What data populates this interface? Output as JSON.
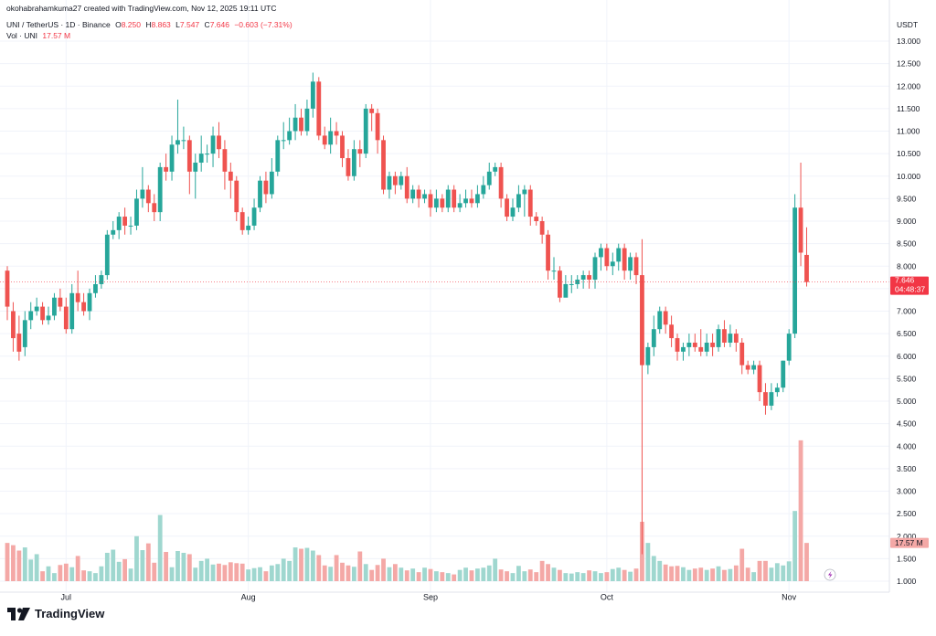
{
  "header": {
    "credit": "okohabrahamkuma27 created with TradingView.com, Nov 12, 2025 19:11 UTC",
    "symbol": "UNI / TetherUS · 1D · Binance",
    "o_label": "O",
    "o_value": "8.250",
    "h_label": "H",
    "h_value": "8.863",
    "l_label": "L",
    "l_value": "7.547",
    "c_label": "C",
    "c_value": "7.646",
    "change": "−0.603 (−7.31%)",
    "vol_label": "Vol · UNI",
    "vol_value": "17.57 M"
  },
  "price_axis": {
    "currency": "USDT",
    "last_price": "7.646",
    "countdown": "04:48:37"
  },
  "volume_axis": {
    "last_volume": "17.57 M"
  },
  "branding": {
    "name": "TradingView"
  },
  "colors": {
    "up": "#26a69a",
    "down": "#ef5350",
    "up_vol": "#9fd7cf",
    "down_vol": "#f4a8a6",
    "last_price_label": "#f23645",
    "grid": "#f0f3fa"
  },
  "chart_data": {
    "type": "candlestick",
    "title": "UNI / TetherUS · 1D · Binance",
    "y_ticks": [
      "13.000",
      "12.500",
      "12.000",
      "11.500",
      "11.000",
      "10.500",
      "10.000",
      "9.500",
      "9.000",
      "8.500",
      "8.000",
      "7.500",
      "7.000",
      "6.500",
      "6.000",
      "5.500",
      "5.000",
      "4.500",
      "4.000",
      "3.500",
      "3.000",
      "2.500",
      "2.000",
      "1.500",
      "1.000"
    ],
    "x_ticks": [
      {
        "label": "Jul",
        "index": 10
      },
      {
        "label": "Aug",
        "index": 41
      },
      {
        "label": "Sep",
        "index": 72
      },
      {
        "label": "Oct",
        "index": 102
      },
      {
        "label": "Nov",
        "index": 133
      }
    ],
    "price_range": [
      4.5,
      13.0
    ],
    "candles": [
      [
        7.9,
        7.1,
        8.0,
        6.8
      ],
      [
        7.0,
        6.4,
        7.2,
        6.1
      ],
      [
        6.5,
        6.1,
        6.9,
        5.9
      ],
      [
        6.2,
        6.8,
        7.0,
        6.0
      ],
      [
        6.8,
        7.0,
        7.2,
        6.6
      ],
      [
        7.0,
        7.1,
        7.3,
        6.9
      ],
      [
        7.1,
        6.8,
        7.2,
        6.7
      ],
      [
        6.8,
        6.9,
        7.1,
        6.7
      ],
      [
        6.9,
        7.3,
        7.4,
        6.8
      ],
      [
        7.3,
        7.1,
        7.5,
        7.0
      ],
      [
        7.1,
        6.6,
        7.3,
        6.5
      ],
      [
        6.6,
        7.4,
        7.6,
        6.5
      ],
      [
        7.4,
        7.2,
        7.9,
        7.0
      ],
      [
        7.2,
        7.0,
        7.4,
        6.9
      ],
      [
        7.0,
        7.4,
        7.5,
        6.8
      ],
      [
        7.4,
        7.6,
        7.8,
        7.3
      ],
      [
        7.6,
        7.8,
        7.9,
        7.5
      ],
      [
        7.8,
        8.7,
        8.8,
        7.7
      ],
      [
        8.7,
        8.8,
        9.0,
        8.6
      ],
      [
        8.8,
        9.1,
        9.2,
        8.6
      ],
      [
        9.1,
        8.9,
        9.3,
        8.7
      ],
      [
        8.9,
        8.9,
        9.1,
        8.7
      ],
      [
        8.9,
        9.5,
        9.7,
        8.8
      ],
      [
        9.5,
        9.7,
        10.2,
        9.3
      ],
      [
        9.7,
        9.4,
        9.8,
        9.2
      ],
      [
        9.4,
        9.2,
        9.6,
        9.0
      ],
      [
        9.2,
        10.2,
        10.3,
        9.0
      ],
      [
        10.2,
        10.1,
        10.5,
        9.9
      ],
      [
        10.1,
        10.7,
        10.9,
        9.9
      ],
      [
        10.7,
        10.8,
        11.7,
        10.5
      ],
      [
        10.8,
        10.8,
        11.1,
        10.6
      ],
      [
        10.8,
        10.1,
        10.9,
        9.6
      ],
      [
        10.1,
        10.3,
        10.5,
        9.5
      ],
      [
        10.3,
        10.5,
        10.9,
        10.1
      ],
      [
        10.5,
        10.5,
        10.7,
        10.3
      ],
      [
        10.5,
        10.9,
        11.1,
        10.2
      ],
      [
        10.9,
        10.6,
        11.2,
        10.4
      ],
      [
        10.6,
        10.1,
        10.8,
        9.7
      ],
      [
        10.1,
        9.9,
        10.3,
        9.5
      ],
      [
        9.9,
        9.2,
        10.0,
        9.0
      ],
      [
        9.2,
        8.8,
        9.3,
        8.7
      ],
      [
        8.8,
        8.9,
        9.1,
        8.7
      ],
      [
        8.9,
        9.3,
        9.5,
        8.8
      ],
      [
        9.3,
        9.9,
        10.0,
        9.2
      ],
      [
        9.9,
        9.6,
        10.1,
        9.4
      ],
      [
        9.6,
        10.1,
        10.4,
        9.5
      ],
      [
        10.1,
        10.8,
        10.9,
        10.0
      ],
      [
        10.8,
        10.8,
        11.2,
        10.6
      ],
      [
        10.8,
        11.0,
        11.3,
        10.7
      ],
      [
        11.0,
        11.3,
        11.6,
        10.8
      ],
      [
        11.3,
        11.0,
        11.5,
        10.9
      ],
      [
        11.0,
        11.5,
        11.7,
        10.9
      ],
      [
        11.5,
        12.1,
        12.3,
        11.3
      ],
      [
        12.1,
        10.9,
        12.2,
        10.8
      ],
      [
        10.9,
        10.7,
        11.1,
        10.6
      ],
      [
        10.7,
        11.0,
        11.3,
        10.5
      ],
      [
        11.0,
        10.9,
        11.2,
        10.7
      ],
      [
        10.9,
        10.4,
        11.0,
        10.2
      ],
      [
        10.4,
        10.0,
        10.6,
        9.9
      ],
      [
        10.0,
        10.6,
        10.8,
        9.9
      ],
      [
        10.6,
        10.5,
        10.8,
        10.2
      ],
      [
        10.5,
        11.5,
        11.6,
        10.4
      ],
      [
        11.5,
        11.4,
        11.6,
        11.0
      ],
      [
        11.4,
        10.8,
        11.5,
        10.5
      ],
      [
        10.8,
        9.7,
        10.9,
        9.6
      ],
      [
        9.7,
        10.0,
        10.1,
        9.5
      ],
      [
        10.0,
        9.8,
        10.1,
        9.6
      ],
      [
        9.8,
        10.0,
        10.1,
        9.7
      ],
      [
        10.0,
        9.5,
        10.2,
        9.4
      ],
      [
        9.5,
        9.7,
        9.8,
        9.4
      ],
      [
        9.7,
        9.5,
        9.8,
        9.3
      ],
      [
        9.5,
        9.6,
        9.7,
        9.4
      ],
      [
        9.6,
        9.3,
        9.7,
        9.1
      ],
      [
        9.3,
        9.5,
        9.7,
        9.2
      ],
      [
        9.5,
        9.3,
        9.6,
        9.2
      ],
      [
        9.3,
        9.7,
        9.8,
        9.2
      ],
      [
        9.7,
        9.3,
        9.8,
        9.2
      ],
      [
        9.3,
        9.4,
        9.6,
        9.2
      ],
      [
        9.4,
        9.5,
        9.7,
        9.3
      ],
      [
        9.5,
        9.4,
        9.7,
        9.3
      ],
      [
        9.4,
        9.6,
        9.8,
        9.3
      ],
      [
        9.6,
        9.8,
        10.0,
        9.5
      ],
      [
        9.8,
        10.1,
        10.3,
        9.7
      ],
      [
        10.1,
        10.2,
        10.3,
        10.0
      ],
      [
        10.2,
        9.5,
        10.3,
        9.3
      ],
      [
        9.5,
        9.1,
        9.6,
        9.0
      ],
      [
        9.1,
        9.3,
        9.5,
        9.0
      ],
      [
        9.3,
        9.6,
        9.8,
        9.2
      ],
      [
        9.6,
        9.7,
        9.8,
        9.1
      ],
      [
        9.7,
        9.1,
        9.8,
        8.9
      ],
      [
        9.1,
        9.0,
        9.2,
        8.9
      ],
      [
        9.0,
        8.7,
        9.1,
        8.5
      ],
      [
        8.7,
        7.9,
        8.8,
        7.7
      ],
      [
        7.9,
        7.9,
        8.2,
        7.7
      ],
      [
        7.9,
        7.3,
        8.0,
        7.2
      ],
      [
        7.3,
        7.6,
        7.8,
        7.4
      ],
      [
        7.6,
        7.6,
        7.8,
        7.4
      ],
      [
        7.6,
        7.7,
        7.8,
        7.5
      ],
      [
        7.7,
        7.8,
        7.9,
        7.5
      ],
      [
        7.8,
        7.7,
        7.9,
        7.5
      ],
      [
        7.7,
        8.2,
        8.3,
        7.5
      ],
      [
        8.2,
        8.4,
        8.5,
        7.9
      ],
      [
        8.4,
        8.0,
        8.5,
        7.9
      ],
      [
        8.0,
        8.1,
        8.3,
        7.8
      ],
      [
        8.1,
        8.4,
        8.5,
        7.9
      ],
      [
        8.4,
        7.9,
        8.5,
        7.7
      ],
      [
        7.9,
        8.2,
        8.3,
        7.7
      ],
      [
        8.2,
        7.8,
        8.3,
        7.6
      ],
      [
        7.8,
        5.8,
        8.6,
        1.6
      ],
      [
        5.8,
        6.2,
        6.3,
        5.6
      ],
      [
        6.2,
        6.6,
        6.9,
        6.0
      ],
      [
        6.6,
        7.0,
        7.1,
        6.5
      ],
      [
        7.0,
        6.7,
        7.1,
        6.5
      ],
      [
        6.7,
        6.4,
        6.9,
        6.2
      ],
      [
        6.4,
        6.1,
        6.5,
        5.9
      ],
      [
        6.1,
        6.2,
        6.3,
        5.9
      ],
      [
        6.2,
        6.3,
        6.5,
        6.0
      ],
      [
        6.3,
        6.2,
        6.5,
        6.1
      ],
      [
        6.2,
        6.1,
        6.6,
        6.0
      ],
      [
        6.1,
        6.3,
        6.5,
        6.0
      ],
      [
        6.3,
        6.2,
        6.5,
        6.0
      ],
      [
        6.2,
        6.6,
        6.7,
        6.1
      ],
      [
        6.6,
        6.3,
        6.8,
        6.2
      ],
      [
        6.3,
        6.5,
        6.7,
        6.2
      ],
      [
        6.5,
        6.3,
        6.6,
        6.1
      ],
      [
        6.3,
        5.8,
        6.4,
        5.6
      ],
      [
        5.8,
        5.7,
        5.9,
        5.6
      ],
      [
        5.7,
        5.8,
        5.9,
        5.6
      ],
      [
        5.8,
        5.2,
        5.9,
        5.0
      ],
      [
        5.2,
        4.9,
        5.4,
        4.7
      ],
      [
        4.9,
        5.2,
        5.4,
        4.8
      ],
      [
        5.2,
        5.3,
        5.4,
        5.1
      ],
      [
        5.3,
        5.9,
        5.9,
        5.2
      ],
      [
        5.9,
        6.5,
        6.6,
        5.8
      ],
      [
        6.5,
        9.3,
        9.6,
        6.4
      ],
      [
        9.3,
        8.3,
        10.3,
        8.0
      ],
      [
        8.25,
        7.646,
        8.863,
        7.547
      ]
    ],
    "volumes": [
      1.85,
      1.8,
      1.68,
      1.75,
      1.48,
      1.6,
      1.22,
      1.33,
      1.18,
      1.36,
      1.39,
      1.31,
      1.56,
      1.24,
      1.22,
      1.18,
      1.33,
      1.63,
      1.7,
      1.43,
      1.49,
      1.28,
      2.0,
      1.69,
      1.84,
      1.41,
      2.47,
      1.65,
      1.31,
      1.67,
      1.63,
      1.6,
      1.3,
      1.45,
      1.5,
      1.37,
      1.39,
      1.36,
      1.42,
      1.4,
      1.39,
      1.26,
      1.29,
      1.31,
      1.22,
      1.35,
      1.38,
      1.5,
      1.45,
      1.75,
      1.72,
      1.74,
      1.68,
      1.58,
      1.35,
      1.32,
      1.58,
      1.41,
      1.35,
      1.32,
      1.66,
      1.38,
      1.25,
      1.36,
      1.5,
      1.31,
      1.38,
      1.3,
      1.24,
      1.28,
      1.2,
      1.3,
      1.27,
      1.22,
      1.2,
      1.18,
      1.15,
      1.25,
      1.3,
      1.24,
      1.28,
      1.3,
      1.35,
      1.5,
      1.26,
      1.22,
      1.18,
      1.34,
      1.22,
      1.26,
      1.2,
      1.45,
      1.38,
      1.3,
      1.25,
      1.18,
      1.17,
      1.2,
      1.18,
      1.24,
      1.22,
      1.18,
      1.2,
      1.27,
      1.3,
      1.25,
      1.21,
      1.28,
      2.32,
      1.85,
      1.56,
      1.45,
      1.37,
      1.33,
      1.34,
      1.31,
      1.25,
      1.28,
      1.3,
      1.25,
      1.28,
      1.33,
      1.25,
      1.27,
      1.35,
      1.72,
      1.3,
      1.2,
      1.45,
      1.45,
      1.3,
      1.4,
      1.35,
      1.44,
      2.56,
      4.13,
      1.85
    ]
  }
}
